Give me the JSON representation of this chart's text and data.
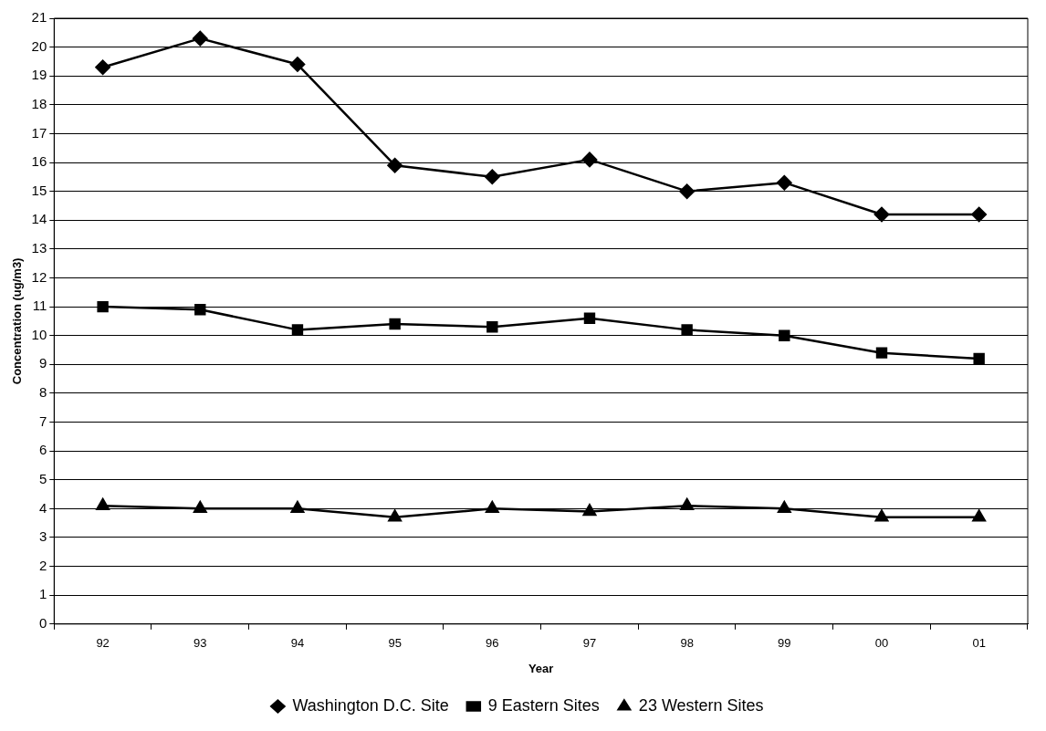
{
  "chart_data": {
    "type": "line",
    "xlabel": "Year",
    "ylabel": "Concentration (ug/m3)",
    "categories": [
      "92",
      "93",
      "94",
      "95",
      "96",
      "97",
      "98",
      "99",
      "00",
      "01"
    ],
    "series": [
      {
        "name": "Washington D.C. Site",
        "color": "#000000",
        "marker": "diamond",
        "values": [
          19.3,
          20.3,
          19.4,
          15.9,
          15.5,
          16.1,
          15.0,
          15.3,
          14.2,
          14.2
        ]
      },
      {
        "name": "9 Eastern Sites",
        "color": "#000000",
        "marker": "square",
        "values": [
          11.0,
          10.9,
          10.2,
          10.4,
          10.3,
          10.6,
          10.2,
          10.0,
          9.4,
          9.2
        ]
      },
      {
        "name": "23 Western Sites",
        "color": "#000000",
        "marker": "triangle",
        "values": [
          4.1,
          4.0,
          4.0,
          3.7,
          4.0,
          3.9,
          4.1,
          4.0,
          3.7,
          3.7
        ]
      }
    ],
    "ylim": [
      0,
      21
    ],
    "yticks": [
      0,
      1,
      2,
      3,
      4,
      5,
      6,
      7,
      8,
      9,
      10,
      11,
      12,
      13,
      14,
      15,
      16,
      17,
      18,
      19,
      20,
      21
    ],
    "grid": "y",
    "legend": "bottom",
    "line_style": "solid"
  }
}
